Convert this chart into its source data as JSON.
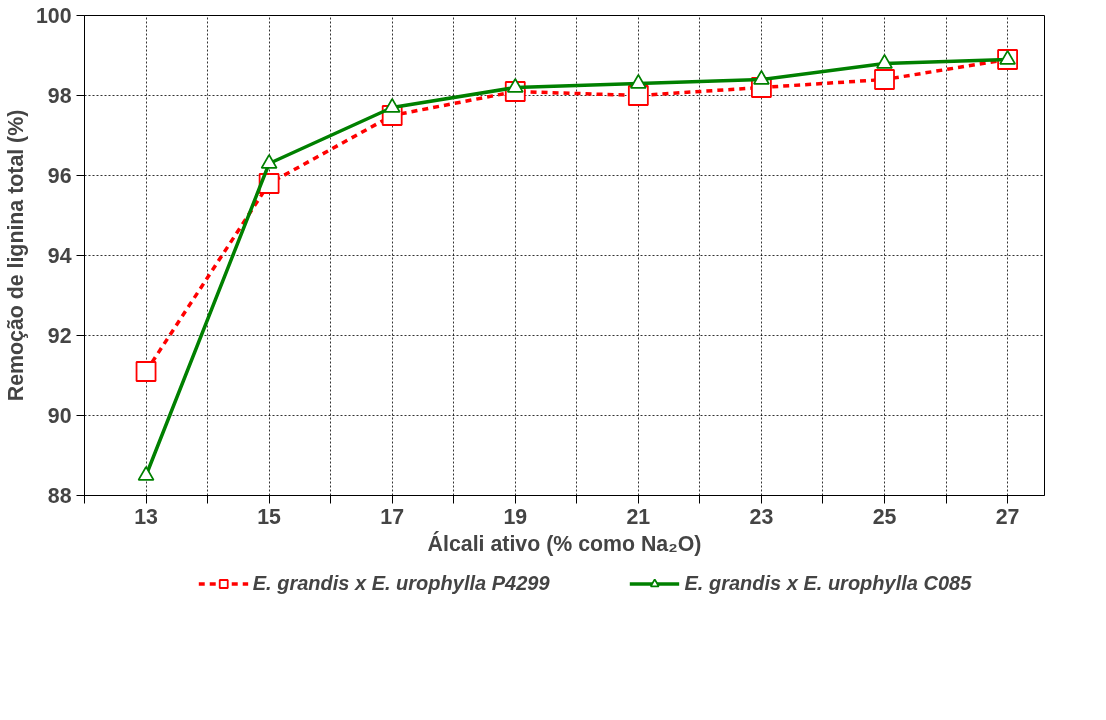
{
  "chart_data": {
    "type": "line",
    "xlabel": "Álcali ativo (% como Na₂O)",
    "ylabel": "Remoção de lignina total (%)",
    "x": [
      13,
      15,
      17,
      19,
      21,
      23,
      25,
      27
    ],
    "xlim": [
      12,
      27.6
    ],
    "xticks": [
      {
        "value": 12,
        "label": null
      },
      13,
      {
        "value": 14,
        "label": null
      },
      15,
      {
        "value": 16,
        "label": null
      },
      17,
      {
        "value": 18,
        "label": null
      },
      19,
      {
        "value": 20,
        "label": null
      },
      21,
      {
        "value": 22,
        "label": null
      },
      23,
      {
        "value": 24,
        "label": null
      },
      25,
      {
        "value": 26,
        "label": null
      },
      27
    ],
    "ylim": [
      88,
      100
    ],
    "yticks": [
      88,
      90,
      92,
      94,
      96,
      98,
      100
    ],
    "grid": true,
    "legend": "bottom",
    "series": [
      {
        "name": "E. grandis x E. urophylla P4299",
        "color": "#ff0000",
        "marker": "square",
        "line_style": "dashed",
        "values": [
          91.1,
          95.8,
          97.5,
          98.1,
          98.0,
          98.2,
          98.4,
          98.9
        ]
      },
      {
        "name": "E. grandis x E. urophylla C085",
        "color": "#008000",
        "marker": "triangle",
        "line_style": "solid",
        "values": [
          88.5,
          96.3,
          97.7,
          98.2,
          98.3,
          98.4,
          98.8,
          98.9
        ]
      }
    ]
  }
}
